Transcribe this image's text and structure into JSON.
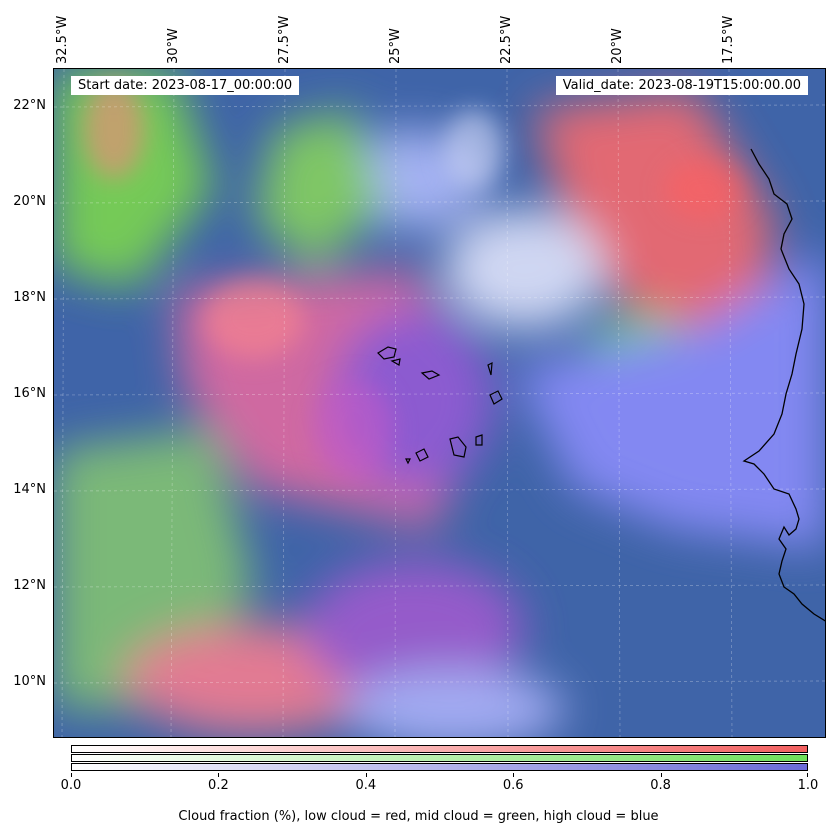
{
  "map": {
    "lon_labels": [
      "32.5°W",
      "30°W",
      "27.5°W",
      "25°W",
      "22.5°W",
      "20°W",
      "17.5°W"
    ],
    "lat_labels": [
      "22°N",
      "20°N",
      "18°N",
      "16°N",
      "14°N",
      "12°N",
      "10°N"
    ],
    "start_date": "Start date: 2023-08-17_00:00:00",
    "valid_date": "Valid_date: 2023-08-19T15:00:00.00",
    "colors": {
      "background": "#3f64a8",
      "low_cloud": "#ff6b6b",
      "mid_cloud": "#7fdc4a",
      "high_cloud": "#6f6fff",
      "coastline": "#000000"
    }
  },
  "colorbar": {
    "ticks": [
      "0.0",
      "0.2",
      "0.4",
      "0.6",
      "0.8",
      "1.0"
    ],
    "label": "Cloud fraction (%), low cloud = red, mid cloud = green, high cloud = blue",
    "rows": [
      {
        "name": "low",
        "color": "#f26060"
      },
      {
        "name": "mid",
        "color": "#6fe05a"
      },
      {
        "name": "high",
        "color": "#6b6bd8"
      }
    ]
  }
}
